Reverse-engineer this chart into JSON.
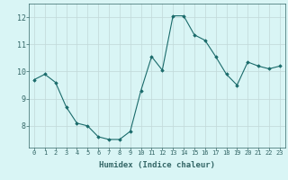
{
  "x": [
    0,
    1,
    2,
    3,
    4,
    5,
    6,
    7,
    8,
    9,
    10,
    11,
    12,
    13,
    14,
    15,
    16,
    17,
    18,
    19,
    20,
    21,
    22,
    23
  ],
  "y": [
    9.7,
    9.9,
    9.6,
    8.7,
    8.1,
    8.0,
    7.6,
    7.5,
    7.5,
    7.8,
    9.3,
    10.55,
    10.05,
    12.05,
    12.05,
    11.35,
    11.15,
    10.55,
    9.9,
    9.5,
    10.35,
    10.2,
    10.1,
    10.2
  ],
  "ylim": [
    7.2,
    12.5
  ],
  "yticks": [
    8,
    9,
    10,
    11,
    12
  ],
  "xticks": [
    0,
    1,
    2,
    3,
    4,
    5,
    6,
    7,
    8,
    9,
    10,
    11,
    12,
    13,
    14,
    15,
    16,
    17,
    18,
    19,
    20,
    21,
    22,
    23
  ],
  "xlabel": "Humidex (Indice chaleur)",
  "line_color": "#1a6b6b",
  "marker": "D",
  "marker_size": 1.8,
  "bg_color": "#d9f5f5",
  "grid_color": "#c0d8d8",
  "axis_color": "#336666",
  "tick_label_fontsize": 5.0,
  "xlabel_fontsize": 6.5
}
